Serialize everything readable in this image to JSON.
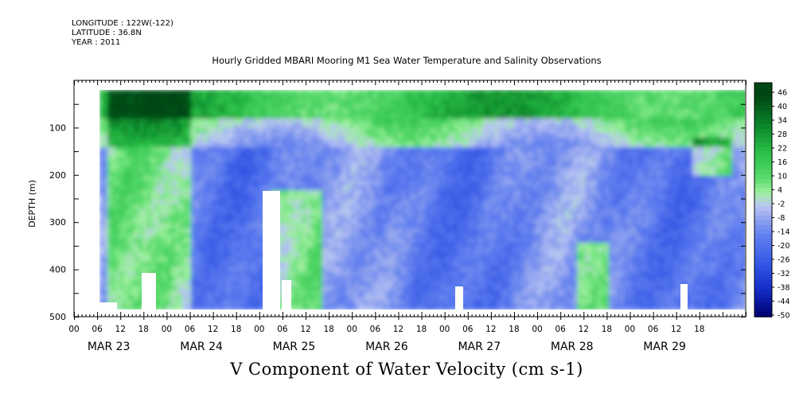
{
  "header": {
    "longitude": "LONGITUDE : 122W(-122)",
    "latitude": "LATITUDE : 36.8N",
    "year": "YEAR : 2011"
  },
  "chart_data": {
    "type": "heatmap",
    "title": "Hourly Gridded MBARI Mooring M1 Sea Water Temperature and Salinity Observations",
    "xlabel": "V Component of Water Velocity (cm s-1)",
    "ylabel": "DEPTH (m)",
    "ylim": [
      500,
      0
    ],
    "y_ticks": [
      100,
      200,
      300,
      400,
      500
    ],
    "x_hour_ticks": [
      "00",
      "06",
      "12",
      "18",
      "00",
      "06",
      "12",
      "18",
      "00",
      "06",
      "12",
      "18",
      "00",
      "06",
      "12",
      "18",
      "00",
      "06",
      "12",
      "18",
      "00",
      "06",
      "12",
      "18",
      "00",
      "06",
      "12",
      "18"
    ],
    "x_day_labels": [
      "MAR 23",
      "MAR 24",
      "MAR 25",
      "MAR 26",
      "MAR 27",
      "MAR 28",
      "MAR 29"
    ],
    "colorbar": {
      "ticks": [
        "46",
        "40",
        "34",
        "28",
        "22",
        "16",
        "10",
        "4",
        "-2",
        "-8",
        "-14",
        "-20",
        "-26",
        "-32",
        "-38",
        "-44",
        "-50"
      ],
      "range": [
        -50,
        52
      ]
    },
    "description_of_field": "Positive (green) northward velocities concentrated near the surface (0-100 m); negative (blue/lavender) velocities dominate 150-480 m with alternating green streaks near MAR 23 and MAR 24-25."
  }
}
